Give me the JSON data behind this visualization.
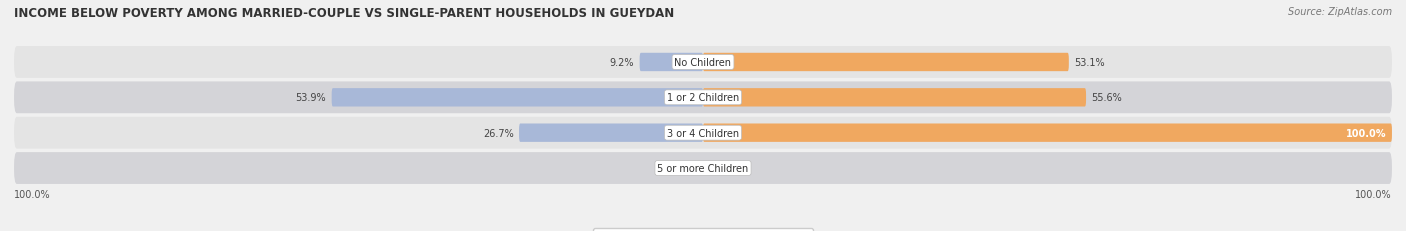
{
  "title": "INCOME BELOW POVERTY AMONG MARRIED-COUPLE VS SINGLE-PARENT HOUSEHOLDS IN GUEYDAN",
  "source": "Source: ZipAtlas.com",
  "categories": [
    "No Children",
    "1 or 2 Children",
    "3 or 4 Children",
    "5 or more Children"
  ],
  "married_values": [
    9.2,
    53.9,
    26.7,
    0.0
  ],
  "single_values": [
    53.1,
    55.6,
    100.0,
    0.0
  ],
  "married_color": "#a8b8d8",
  "single_color": "#f0a860",
  "single_color_light": "#f5c898",
  "bg_color": "#f0f0f0",
  "row_colors": [
    "#e8e8e8",
    "#d8d8d8"
  ],
  "max_val": 100.0,
  "title_fontsize": 8.5,
  "label_fontsize": 7.0,
  "tick_fontsize": 7.0,
  "legend_fontsize": 7.5,
  "source_fontsize": 7.0,
  "axis_label_left": "100.0%",
  "axis_label_right": "100.0%"
}
